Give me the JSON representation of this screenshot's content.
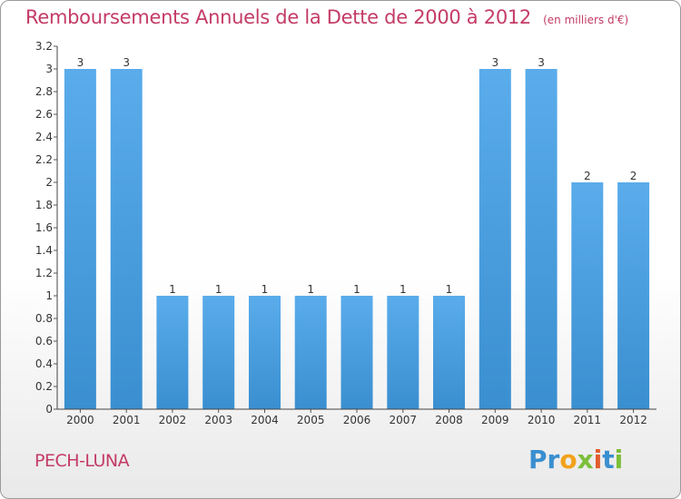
{
  "chart_data": {
    "type": "bar",
    "title": "Remboursements Annuels de la Dette de 2000 à 2012",
    "unit_note": "(en milliers d'€)",
    "categories": [
      "2000",
      "2001",
      "2002",
      "2003",
      "2004",
      "2005",
      "2006",
      "2007",
      "2008",
      "2009",
      "2010",
      "2011",
      "2012"
    ],
    "values": [
      3,
      3,
      1,
      1,
      1,
      1,
      1,
      1,
      1,
      3,
      3,
      2,
      2
    ],
    "data_labels": [
      "3",
      "3",
      "1",
      "1",
      "1",
      "1",
      "1",
      "1",
      "1",
      "3",
      "3",
      "2",
      "2"
    ],
    "ylim": [
      0,
      3.2
    ],
    "yticks": [
      {
        "value": 0,
        "label": "0"
      },
      {
        "value": 0.2,
        "label": "0.2"
      },
      {
        "value": 0.4,
        "label": "0.4"
      },
      {
        "value": 0.6,
        "label": "0.6"
      },
      {
        "value": 0.8,
        "label": "0.8"
      },
      {
        "value": 1,
        "label": "1"
      },
      {
        "value": 1.2,
        "label": "1.2"
      },
      {
        "value": 1.4,
        "label": "1.4"
      },
      {
        "value": 1.6,
        "label": "1.6"
      },
      {
        "value": 1.8,
        "label": "1.8"
      },
      {
        "value": 2,
        "label": "2"
      },
      {
        "value": 2.2,
        "label": "2.2"
      },
      {
        "value": 2.4,
        "label": "2.4"
      },
      {
        "value": 2.6,
        "label": "2.6"
      },
      {
        "value": 2.8,
        "label": "2.8"
      },
      {
        "value": 3,
        "label": "3"
      },
      {
        "value": 3.2,
        "label": "3.2"
      }
    ],
    "grid": false,
    "legend": "none",
    "bar_color": "#3a8fd0"
  },
  "footer": {
    "commune": "PECH-LUNA",
    "logo": [
      "P",
      "r",
      "o",
      "x",
      "i",
      "t",
      "i"
    ]
  }
}
